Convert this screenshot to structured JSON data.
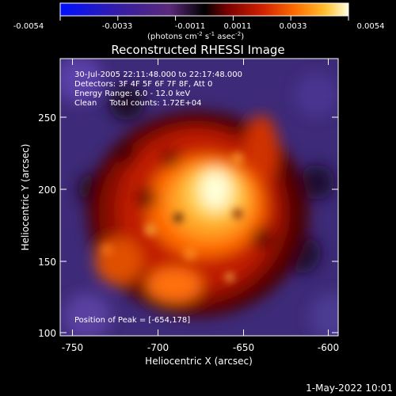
{
  "colorbar": {
    "ticks": [
      "-0.0054",
      "-0.0033",
      "-0.0011",
      "0.0011",
      "0.0033",
      "0.0054"
    ],
    "units": "(photons cm",
    "units_exp1": "-2",
    "units_mid": " s",
    "units_exp2": "-1",
    "units_mid2": " asec",
    "units_exp3": "-2",
    "units_end": ")",
    "stops": [
      "#0010ff",
      "#3a1ea0",
      "#5a2a7a",
      "#000000",
      "#7a0000",
      "#d02000",
      "#ff7000",
      "#ffc030",
      "#ffffe0"
    ]
  },
  "title": "Reconstructed RHESSI Image",
  "info": {
    "line1": "30-Jul-2005 22:11:48.000 to 22:17:48.000",
    "line2": "Detectors: 3F 4F 5F 6F 7F 8F, Att 0",
    "line3": "Energy Range: 6.0 - 12.0 keV",
    "line4": "Clean     Total counts: 1.72E+04"
  },
  "peak": "Position of Peak = [-654,178]",
  "axes": {
    "xlabel": "Heliocentric X (arcsec)",
    "ylabel": "Heliocentric Y (arcsec)",
    "xticks": [
      "-750",
      "-700",
      "-650",
      "-600"
    ],
    "yticks": [
      "100",
      "150",
      "200",
      "250"
    ]
  },
  "footer_date": "1-May-2022 10:01"
}
